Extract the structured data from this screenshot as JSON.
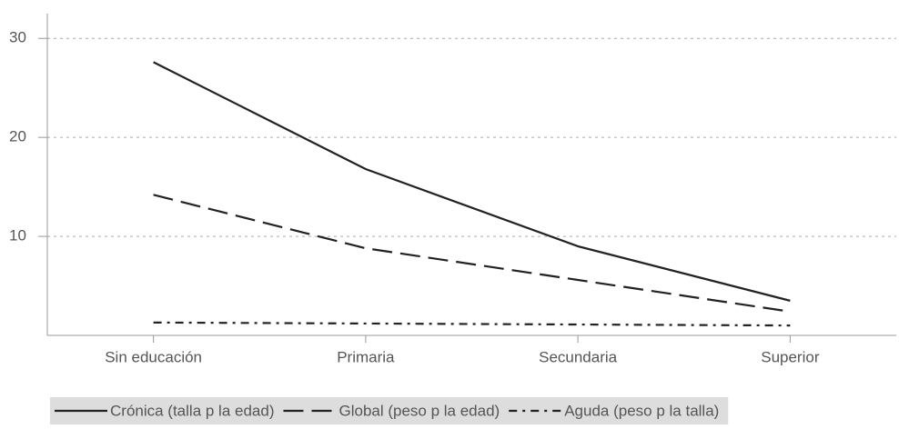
{
  "chart_data": {
    "type": "line",
    "categories": [
      "Sin educación",
      "Primaria",
      "Secundaria",
      "Superior"
    ],
    "series": [
      {
        "name": "Crónica (talla p la edad)",
        "color": "#222222",
        "line_style": "solid",
        "values": [
          27.6,
          16.8,
          9.0,
          3.5
        ]
      },
      {
        "name": "Global (peso p la edad)",
        "color": "#222222",
        "line_style": "dashed",
        "values": [
          14.2,
          8.8,
          5.6,
          2.4
        ]
      },
      {
        "name": "Aguda (peso p la talla)",
        "color": "#222222",
        "line_style": "dashdot",
        "values": [
          1.3,
          1.2,
          1.1,
          1.0
        ]
      }
    ],
    "ylim": [
      0,
      32.5
    ],
    "yticks": [
      10,
      20,
      30
    ],
    "grid": true,
    "legend": "bottom"
  }
}
